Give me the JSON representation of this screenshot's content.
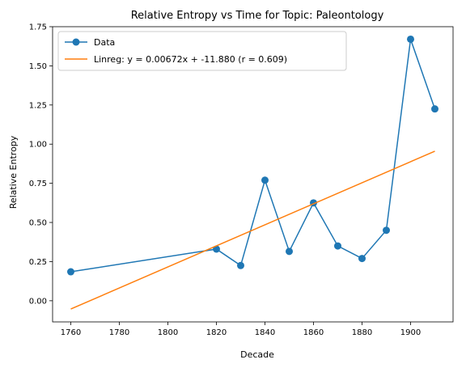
{
  "chart_data": {
    "type": "line",
    "title": "Relative Entropy vs Time for Topic: Paleontology",
    "xlabel": "Decade",
    "ylabel": "Relative Entropy",
    "xlim": [
      1752.5,
      1917.5
    ],
    "ylim": [
      -0.135,
      1.75
    ],
    "xticks": [
      1760,
      1780,
      1800,
      1820,
      1840,
      1860,
      1880,
      1900
    ],
    "yticks": [
      0.0,
      0.25,
      0.5,
      0.75,
      1.0,
      1.25,
      1.5,
      1.75
    ],
    "ytick_labels": [
      "0.00",
      "0.25",
      "0.50",
      "0.75",
      "1.00",
      "1.25",
      "1.50",
      "1.75"
    ],
    "grid": false,
    "legend_position": "top-left",
    "series": [
      {
        "name": "Data",
        "kind": "line-marker",
        "color": "#1f77b4",
        "x": [
          1760,
          1820,
          1830,
          1840,
          1850,
          1860,
          1870,
          1880,
          1890,
          1900,
          1910
        ],
        "y": [
          0.185,
          0.33,
          0.225,
          0.77,
          0.315,
          0.625,
          0.35,
          0.27,
          0.45,
          1.67,
          1.225
        ]
      },
      {
        "name": "Linreg: y = 0.00672x + -11.880 (r = 0.609)",
        "kind": "line",
        "color": "#ff7f0e",
        "x": [
          1760,
          1910
        ],
        "y": [
          -0.0528,
          0.9552
        ]
      }
    ]
  }
}
